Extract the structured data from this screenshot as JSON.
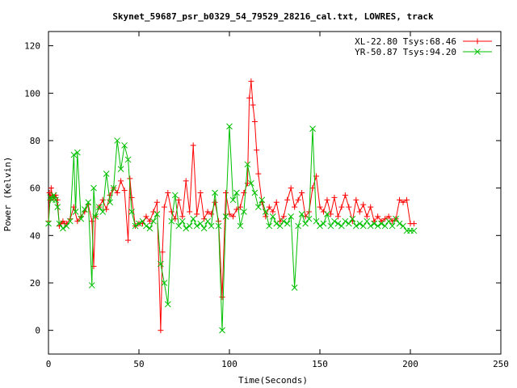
{
  "chart_data": {
    "type": "line",
    "title": "Skynet_59687_psr_b0329_54_79529_28216_cal.txt, LOWRES, track",
    "xlabel": "Time(Seconds)",
    "ylabel": "Power (Kelvin)",
    "xlim": [
      0,
      250
    ],
    "ylim": [
      -10,
      126
    ],
    "xticks": [
      0,
      50,
      100,
      150,
      200,
      250
    ],
    "yticks": [
      0,
      20,
      40,
      60,
      80,
      100,
      120
    ],
    "grid": false,
    "legend_position": "top-right",
    "series": [
      {
        "name": "XL-22.80 Tsys:68.46",
        "color": "#ff0000",
        "marker": "plus",
        "x": [
          0,
          0.5,
          1,
          1.5,
          2,
          3,
          4,
          5,
          6,
          7,
          8,
          9,
          10,
          12,
          14,
          16,
          18,
          20,
          22,
          24,
          25,
          26,
          28,
          30,
          32,
          34,
          36,
          38,
          40,
          42,
          44,
          45,
          46,
          48,
          50,
          52,
          54,
          56,
          58,
          60,
          62,
          63,
          64,
          66,
          68,
          70,
          72,
          74,
          76,
          78,
          80,
          82,
          84,
          86,
          88,
          90,
          92,
          94,
          96,
          98,
          100,
          102,
          104,
          106,
          108,
          110,
          111,
          112,
          113,
          114,
          115,
          116,
          118,
          120,
          122,
          124,
          126,
          128,
          130,
          132,
          134,
          136,
          138,
          140,
          142,
          144,
          146,
          148,
          150,
          152,
          154,
          156,
          158,
          160,
          162,
          164,
          166,
          168,
          170,
          172,
          174,
          176,
          178,
          180,
          182,
          184,
          186,
          188,
          190,
          192,
          194,
          196,
          198,
          200,
          202
        ],
        "y": [
          46,
          58,
          55,
          60,
          57,
          56,
          57,
          55,
          44,
          45,
          46,
          45,
          45,
          47,
          52,
          46,
          48,
          50,
          53,
          46,
          27,
          48,
          52,
          55,
          51,
          57,
          60,
          58,
          63,
          59,
          38,
          64,
          56,
          44,
          45,
          45,
          48,
          46,
          50,
          54,
          0,
          33,
          52,
          58,
          50,
          47,
          55,
          48,
          63,
          50,
          78,
          49,
          58,
          47,
          50,
          49,
          54,
          46,
          14,
          58,
          49,
          48,
          51,
          52,
          58,
          62,
          98,
          105,
          95,
          88,
          76,
          66,
          54,
          48,
          52,
          50,
          54,
          46,
          48,
          55,
          60,
          52,
          55,
          58,
          48,
          50,
          60,
          65,
          52,
          50,
          55,
          49,
          56,
          48,
          52,
          57,
          52,
          46,
          55,
          50,
          53,
          48,
          52,
          46,
          48,
          46,
          47,
          48,
          46,
          47,
          55,
          54,
          55,
          45,
          45
        ]
      },
      {
        "name": "YR-50.87 Tsys:94.20",
        "color": "#00c000",
        "marker": "cross",
        "x": [
          0,
          1,
          2,
          3,
          4,
          5,
          6,
          8,
          10,
          12,
          14,
          15,
          16,
          18,
          20,
          22,
          24,
          25,
          26,
          28,
          30,
          32,
          34,
          36,
          38,
          40,
          42,
          44,
          46,
          48,
          50,
          52,
          54,
          56,
          58,
          60,
          62,
          64,
          66,
          68,
          70,
          72,
          74,
          76,
          78,
          80,
          82,
          84,
          86,
          88,
          90,
          92,
          94,
          96,
          98,
          100,
          102,
          104,
          106,
          108,
          110,
          112,
          114,
          116,
          118,
          120,
          122,
          124,
          126,
          128,
          130,
          132,
          134,
          136,
          138,
          140,
          142,
          144,
          146,
          148,
          150,
          152,
          154,
          156,
          158,
          160,
          162,
          164,
          166,
          168,
          170,
          172,
          174,
          176,
          178,
          180,
          182,
          184,
          186,
          188,
          190,
          192,
          194,
          196,
          198,
          200,
          202
        ],
        "y": [
          45,
          56,
          55,
          57,
          55,
          52,
          45,
          43,
          44,
          46,
          74,
          50,
          75,
          47,
          51,
          54,
          19,
          60,
          48,
          52,
          50,
          66,
          54,
          60,
          80,
          68,
          78,
          72,
          50,
          44,
          45,
          46,
          44,
          43,
          46,
          49,
          28,
          20,
          11,
          46,
          57,
          44,
          46,
          43,
          44,
          47,
          44,
          45,
          43,
          46,
          44,
          58,
          44,
          0,
          48,
          86,
          55,
          58,
          44,
          50,
          70,
          62,
          58,
          52,
          55,
          50,
          44,
          48,
          45,
          44,
          46,
          45,
          48,
          18,
          44,
          49,
          45,
          47,
          85,
          46,
          44,
          45,
          49,
          44,
          46,
          45,
          44,
          46,
          45,
          47,
          44,
          45,
          44,
          46,
          44,
          45,
          44,
          45,
          44,
          46,
          44,
          47,
          45,
          44,
          42,
          42,
          42
        ]
      }
    ]
  }
}
